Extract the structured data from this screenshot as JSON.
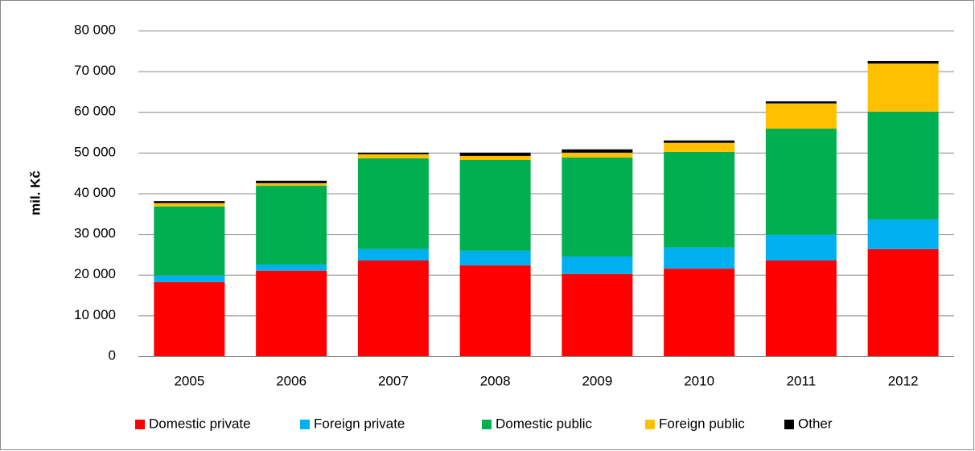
{
  "chart_data": {
    "type": "stacked_bar",
    "ylabel": "mil. Kč",
    "categories": [
      "2005",
      "2006",
      "2007",
      "2008",
      "2009",
      "2010",
      "2011",
      "2012"
    ],
    "series": [
      {
        "name": "Domestic private",
        "color": "#ff0000",
        "values": [
          18200,
          21000,
          23500,
          22300,
          20200,
          21500,
          23500,
          26300
        ]
      },
      {
        "name": "Foreign private",
        "color": "#00b0f0",
        "values": [
          1600,
          1500,
          2800,
          3600,
          4300,
          5200,
          6300,
          7300
        ]
      },
      {
        "name": "Domestic public",
        "color": "#00b050",
        "values": [
          17000,
          19400,
          22300,
          22300,
          24300,
          23500,
          26100,
          26500
        ]
      },
      {
        "name": "Foreign public",
        "color": "#ffc000",
        "values": [
          800,
          600,
          1000,
          1000,
          1200,
          2200,
          6200,
          11800
        ]
      },
      {
        "name": "Other",
        "color": "#000000",
        "values": [
          500,
          600,
          400,
          800,
          800,
          600,
          500,
          600
        ]
      }
    ],
    "ylim": [
      0,
      80000
    ],
    "yticks": [
      0,
      {
        "value": 10000,
        "label": "10 000"
      },
      {
        "value": 20000,
        "label": "20 000"
      },
      {
        "value": 30000,
        "label": "30 000"
      },
      {
        "value": 40000,
        "label": "40 000"
      },
      {
        "value": 50000,
        "label": "50 000"
      },
      {
        "value": 60000,
        "label": "60 000"
      },
      {
        "value": 70000,
        "label": "70 000"
      },
      {
        "value": 80000,
        "label": "80 000"
      }
    ],
    "grid": true,
    "legend": "bottom"
  }
}
